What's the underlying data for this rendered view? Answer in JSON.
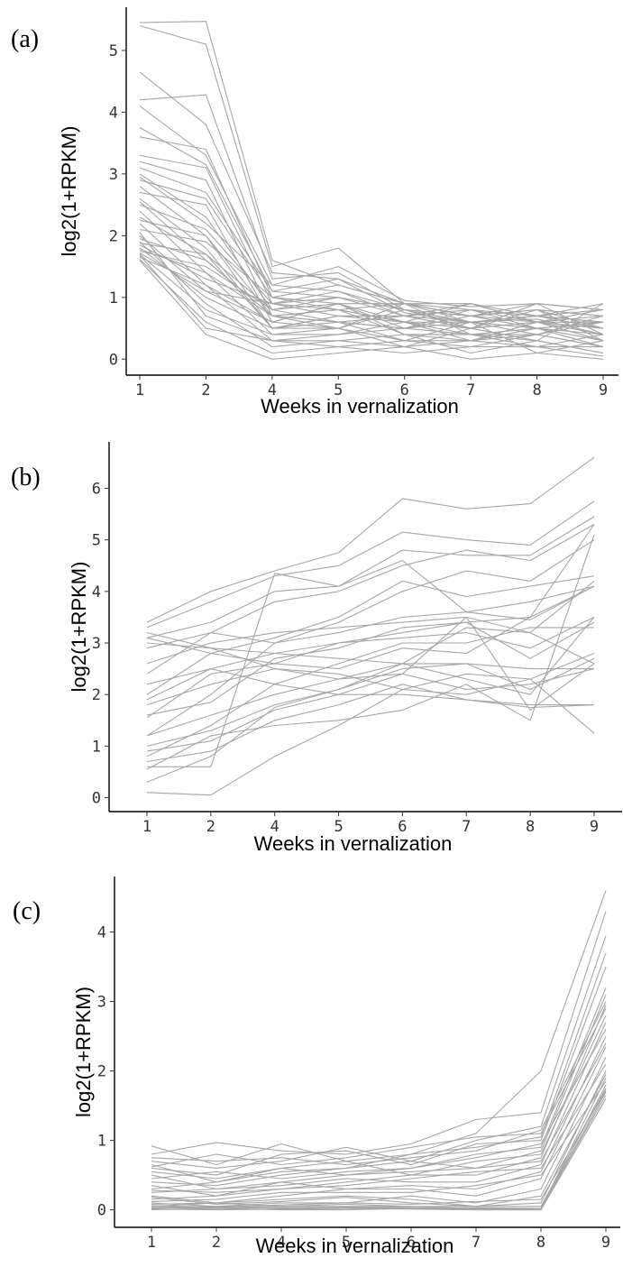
{
  "figure": {
    "background": "#ffffff",
    "line_color": "#a6a6a6",
    "axis_color": "#000000"
  },
  "chart_data": [
    {
      "type": "line",
      "panel_label": "(a)",
      "xlabel": "Weeks in vernalization",
      "ylabel": "log2(1+RPKM)",
      "categories": [
        "1",
        "2",
        "4",
        "5",
        "6",
        "7",
        "8",
        "9"
      ],
      "yticks": [
        0,
        1,
        2,
        3,
        4,
        5
      ],
      "ylim": [
        -0.2,
        5.7
      ],
      "series": [
        {
          "values": [
            5.45,
            5.47,
            1.6,
            1.2,
            0.9,
            0.8,
            0.7,
            0.6
          ]
        },
        {
          "values": [
            5.4,
            5.1,
            1.5,
            1.8,
            0.9,
            0.7,
            0.8,
            0.5
          ]
        },
        {
          "values": [
            4.65,
            3.8,
            1.4,
            1.3,
            0.9,
            0.9,
            0.6,
            0.7
          ]
        },
        {
          "values": [
            4.2,
            4.28,
            1.3,
            1.4,
            0.8,
            0.6,
            0.7,
            0.5
          ]
        },
        {
          "values": [
            4.1,
            3.3,
            1.2,
            1.5,
            0.95,
            0.85,
            0.9,
            0.8
          ]
        },
        {
          "values": [
            3.75,
            3.15,
            1.1,
            1.3,
            0.75,
            0.6,
            0.65,
            0.4
          ]
        },
        {
          "values": [
            3.6,
            3.4,
            1.0,
            1.2,
            0.9,
            0.7,
            0.5,
            0.6
          ]
        },
        {
          "values": [
            3.3,
            3.1,
            0.9,
            1.0,
            0.8,
            0.5,
            0.6,
            0.3
          ]
        },
        {
          "values": [
            3.1,
            2.7,
            1.1,
            1.0,
            0.7,
            0.9,
            0.7,
            0.5
          ]
        },
        {
          "values": [
            3.0,
            2.3,
            0.8,
            0.9,
            0.6,
            0.4,
            0.5,
            0.4
          ]
        },
        {
          "values": [
            2.9,
            2.6,
            1.0,
            0.8,
            0.9,
            0.7,
            0.8,
            0.7
          ]
        },
        {
          "values": [
            2.8,
            2.0,
            0.7,
            0.6,
            0.5,
            0.6,
            0.4,
            0.2
          ]
        },
        {
          "values": [
            2.7,
            2.5,
            0.6,
            0.9,
            0.4,
            0.3,
            0.6,
            0.5
          ]
        },
        {
          "values": [
            2.6,
            1.8,
            0.5,
            0.7,
            0.6,
            0.5,
            0.3,
            0.1
          ]
        },
        {
          "values": [
            2.5,
            2.1,
            0.9,
            1.1,
            0.8,
            0.7,
            0.9,
            0.8
          ]
        },
        {
          "values": [
            2.4,
            1.4,
            0.4,
            0.5,
            0.3,
            0.2,
            0.4,
            0.6
          ]
        },
        {
          "values": [
            2.3,
            1.7,
            0.8,
            0.6,
            0.7,
            0.8,
            0.5,
            0.3
          ]
        },
        {
          "values": [
            2.2,
            1.2,
            0.3,
            0.4,
            0.5,
            0.4,
            0.2,
            0.4
          ]
        },
        {
          "values": [
            2.1,
            1.9,
            1.0,
            0.9,
            0.9,
            0.6,
            0.7,
            0.9
          ]
        },
        {
          "values": [
            2.0,
            1.1,
            0.6,
            0.5,
            0.2,
            0.3,
            0.5,
            0.2
          ]
        },
        {
          "values": [
            1.95,
            1.6,
            0.7,
            0.8,
            0.6,
            0.9,
            0.6,
            0.6
          ]
        },
        {
          "values": [
            1.9,
            0.9,
            0.2,
            0.3,
            0.4,
            0.1,
            0.3,
            0.1
          ]
        },
        {
          "values": [
            1.85,
            1.3,
            0.9,
            0.7,
            0.7,
            0.5,
            0.8,
            0.7
          ]
        },
        {
          "values": [
            1.8,
            1.0,
            0.5,
            0.6,
            0.3,
            0.6,
            0.1,
            0.3
          ]
        },
        {
          "values": [
            1.75,
            1.5,
            0.8,
            1.0,
            0.8,
            0.7,
            0.6,
            0.5
          ]
        },
        {
          "values": [
            1.7,
            0.8,
            0.4,
            0.4,
            0.6,
            0.3,
            0.4,
            0.2
          ]
        },
        {
          "values": [
            1.65,
            1.2,
            0.6,
            0.9,
            0.5,
            0.8,
            0.7,
            0.8
          ]
        },
        {
          "values": [
            1.62,
            0.6,
            0.1,
            0.2,
            0.1,
            0.2,
            0.2,
            0.05
          ]
        },
        {
          "values": [
            1.6,
            0.4,
            0.0,
            0.1,
            0.2,
            0.0,
            0.1,
            0.0
          ]
        },
        {
          "values": [
            1.78,
            1.4,
            0.7,
            0.5,
            0.9,
            0.4,
            0.3,
            0.9
          ]
        },
        {
          "values": [
            2.05,
            0.7,
            0.3,
            0.3,
            0.2,
            0.5,
            0.6,
            0.4
          ]
        },
        {
          "values": [
            2.25,
            2.0,
            0.5,
            0.7,
            0.7,
            0.6,
            0.5,
            0.6
          ]
        },
        {
          "values": [
            2.55,
            1.6,
            0.7,
            0.6,
            0.5,
            0.7,
            0.8,
            0.3
          ]
        },
        {
          "values": [
            1.72,
            1.1,
            0.9,
            0.8,
            0.4,
            0.4,
            0.4,
            0.7
          ]
        },
        {
          "values": [
            1.68,
            0.5,
            0.3,
            0.2,
            0.3,
            0.3,
            0.2,
            0.2
          ]
        },
        {
          "values": [
            3.2,
            2.9,
            0.7,
            0.8,
            0.6,
            0.6,
            0.7,
            0.6
          ]
        },
        {
          "values": [
            2.95,
            2.2,
            1.2,
            1.1,
            0.7,
            0.8,
            0.6,
            0.8
          ]
        },
        {
          "values": [
            1.88,
            1.7,
            0.5,
            0.5,
            0.8,
            0.5,
            0.9,
            0.4
          ]
        }
      ]
    },
    {
      "type": "line",
      "panel_label": "(b)",
      "xlabel": "Weeks in vernalization",
      "ylabel": "log2(1+RPKM)",
      "categories": [
        "1",
        "2",
        "4",
        "5",
        "6",
        "7",
        "8",
        "9"
      ],
      "yticks": [
        0,
        1,
        2,
        3,
        4,
        5,
        6
      ],
      "ylim": [
        -0.2,
        6.9
      ],
      "series": [
        {
          "values": [
            3.4,
            4.0,
            4.4,
            4.75,
            5.8,
            5.6,
            5.7,
            6.6
          ]
        },
        {
          "values": [
            3.3,
            3.8,
            4.3,
            4.5,
            5.15,
            5.0,
            4.9,
            5.75
          ]
        },
        {
          "values": [
            3.1,
            3.4,
            4.0,
            4.1,
            4.8,
            4.7,
            4.7,
            5.45
          ]
        },
        {
          "values": [
            2.9,
            3.2,
            3.8,
            4.0,
            4.5,
            4.8,
            4.6,
            5.3
          ]
        },
        {
          "values": [
            2.6,
            3.0,
            3.2,
            3.3,
            3.4,
            3.5,
            3.2,
            4.2
          ]
        },
        {
          "values": [
            2.0,
            2.8,
            3.1,
            3.5,
            4.2,
            3.9,
            4.1,
            4.3
          ]
        },
        {
          "values": [
            1.9,
            2.5,
            2.8,
            3.0,
            3.2,
            3.4,
            3.5,
            4.1
          ]
        },
        {
          "values": [
            1.6,
            1.85,
            2.7,
            2.9,
            3.3,
            3.4,
            2.7,
            3.4
          ]
        },
        {
          "values": [
            1.55,
            2.4,
            2.6,
            2.5,
            2.9,
            2.8,
            3.5,
            5.3
          ]
        },
        {
          "values": [
            1.2,
            1.6,
            2.0,
            2.3,
            2.6,
            3.3,
            3.2,
            2.6
          ]
        },
        {
          "values": [
            1.0,
            1.3,
            1.8,
            2.1,
            2.6,
            2.3,
            2.0,
            3.5
          ]
        },
        {
          "values": [
            0.9,
            1.1,
            1.7,
            2.0,
            2.4,
            2.1,
            2.2,
            2.5
          ]
        },
        {
          "values": [
            0.7,
            0.9,
            1.5,
            1.8,
            2.2,
            1.9,
            1.75,
            1.8
          ]
        },
        {
          "values": [
            0.6,
            0.6,
            4.35,
            4.1,
            4.6,
            3.6,
            3.45,
            4.1
          ]
        },
        {
          "values": [
            0.55,
            1.2,
            1.4,
            1.5,
            1.7,
            2.2,
            1.5,
            5.1
          ]
        },
        {
          "values": [
            0.3,
            0.8,
            1.75,
            2.1,
            2.5,
            2.6,
            2.1,
            2.7
          ]
        },
        {
          "values": [
            0.1,
            0.05,
            0.8,
            1.4,
            2.1,
            2.4,
            2.3,
            2.8
          ]
        },
        {
          "values": [
            3.2,
            2.9,
            2.5,
            2.3,
            2.4,
            3.5,
            1.7,
            2.6
          ]
        },
        {
          "values": [
            3.0,
            2.9,
            2.8,
            2.7,
            2.6,
            2.6,
            2.5,
            2.5
          ]
        },
        {
          "values": [
            2.2,
            2.5,
            2.2,
            2.0,
            2.0,
            1.9,
            1.8,
            1.8
          ]
        },
        {
          "values": [
            1.8,
            2.2,
            2.5,
            2.4,
            2.1,
            2.0,
            2.3,
            1.25
          ]
        },
        {
          "values": [
            3.1,
            2.8,
            2.6,
            3.0,
            3.1,
            3.2,
            2.9,
            3.5
          ]
        },
        {
          "values": [
            1.2,
            2.0,
            3.0,
            3.2,
            3.5,
            3.6,
            3.8,
            4.1
          ]
        },
        {
          "values": [
            0.8,
            1.4,
            2.2,
            2.6,
            3.0,
            3.0,
            3.3,
            3.3
          ]
        },
        {
          "values": [
            2.4,
            3.2,
            3.0,
            3.4,
            4.0,
            4.4,
            4.2,
            5.0
          ]
        }
      ]
    },
    {
      "type": "line",
      "panel_label": "(c)",
      "xlabel": "Weeks in vernalization",
      "ylabel": "log2(1+RPKM)",
      "categories": [
        "1",
        "2",
        "4",
        "5",
        "6",
        "7",
        "8",
        "9"
      ],
      "yticks": [
        0,
        1,
        2,
        3,
        4
      ],
      "ylim": [
        -0.2,
        4.8
      ],
      "series": [
        {
          "values": [
            0.92,
            0.65,
            0.95,
            0.7,
            0.8,
            1.1,
            2.0,
            4.6
          ]
        },
        {
          "values": [
            0.8,
            0.97,
            0.85,
            0.8,
            0.95,
            1.3,
            1.4,
            4.3
          ]
        },
        {
          "values": [
            0.7,
            0.6,
            0.7,
            0.9,
            0.7,
            1.0,
            1.2,
            3.95
          ]
        },
        {
          "values": [
            0.65,
            0.4,
            0.55,
            0.6,
            0.8,
            0.9,
            1.05,
            3.7
          ]
        },
        {
          "values": [
            0.6,
            0.5,
            0.8,
            0.85,
            0.65,
            0.95,
            1.0,
            3.5
          ]
        },
        {
          "values": [
            0.5,
            0.3,
            0.4,
            0.5,
            0.6,
            0.8,
            0.9,
            3.2
          ]
        },
        {
          "values": [
            0.4,
            0.35,
            0.5,
            0.6,
            0.7,
            0.6,
            0.85,
            3.1
          ]
        },
        {
          "values": [
            0.35,
            0.2,
            0.3,
            0.4,
            0.5,
            0.5,
            0.75,
            2.95
          ]
        },
        {
          "values": [
            0.3,
            0.4,
            0.6,
            0.7,
            0.5,
            0.7,
            0.8,
            2.8
          ]
        },
        {
          "values": [
            0.25,
            0.3,
            0.35,
            0.45,
            0.4,
            0.4,
            0.65,
            2.7
          ]
        },
        {
          "values": [
            0.2,
            0.1,
            0.2,
            0.3,
            0.35,
            0.3,
            0.55,
            2.5
          ]
        },
        {
          "values": [
            0.15,
            0.2,
            0.4,
            0.3,
            0.3,
            0.2,
            0.45,
            2.35
          ]
        },
        {
          "values": [
            0.1,
            0.05,
            0.1,
            0.1,
            0.2,
            0.1,
            0.3,
            2.2
          ]
        },
        {
          "values": [
            0.08,
            0.1,
            0.15,
            0.2,
            0.15,
            0.05,
            0.1,
            2.0
          ]
        },
        {
          "values": [
            0.05,
            0.03,
            0.05,
            0.05,
            0.05,
            0.02,
            0.02,
            1.9
          ]
        },
        {
          "values": [
            0.03,
            0.02,
            0.03,
            0.03,
            0.02,
            0.0,
            0.0,
            1.8
          ]
        },
        {
          "values": [
            0.02,
            0.05,
            0.02,
            0.04,
            0.03,
            0.01,
            0.01,
            1.7
          ]
        },
        {
          "values": [
            0.01,
            0.0,
            0.01,
            0.02,
            0.01,
            0.0,
            0.0,
            1.6
          ]
        },
        {
          "values": [
            0.0,
            0.02,
            0.0,
            0.0,
            0.02,
            0.03,
            0.02,
            1.65
          ]
        },
        {
          "values": [
            0.05,
            0.1,
            0.05,
            0.08,
            0.05,
            0.05,
            0.05,
            1.75
          ]
        },
        {
          "values": [
            0.55,
            0.45,
            0.6,
            0.5,
            0.55,
            0.6,
            0.7,
            2.4
          ]
        },
        {
          "values": [
            0.45,
            0.55,
            0.45,
            0.55,
            0.6,
            0.75,
            0.95,
            2.6
          ]
        },
        {
          "values": [
            0.28,
            0.25,
            0.3,
            0.35,
            0.45,
            0.55,
            0.6,
            2.1
          ]
        },
        {
          "values": [
            0.12,
            0.15,
            0.25,
            0.25,
            0.25,
            0.35,
            0.5,
            1.85
          ]
        },
        {
          "values": [
            0.75,
            0.7,
            0.75,
            0.65,
            0.75,
            0.85,
            1.15,
            3.0
          ]
        },
        {
          "values": [
            0.62,
            0.8,
            0.65,
            0.75,
            0.9,
            1.05,
            1.1,
            2.9
          ]
        },
        {
          "values": [
            0.18,
            0.08,
            0.12,
            0.18,
            0.1,
            0.05,
            0.2,
            1.95
          ]
        },
        {
          "values": [
            0.06,
            0.04,
            0.07,
            0.1,
            0.08,
            0.12,
            0.15,
            1.72
          ]
        }
      ]
    }
  ]
}
